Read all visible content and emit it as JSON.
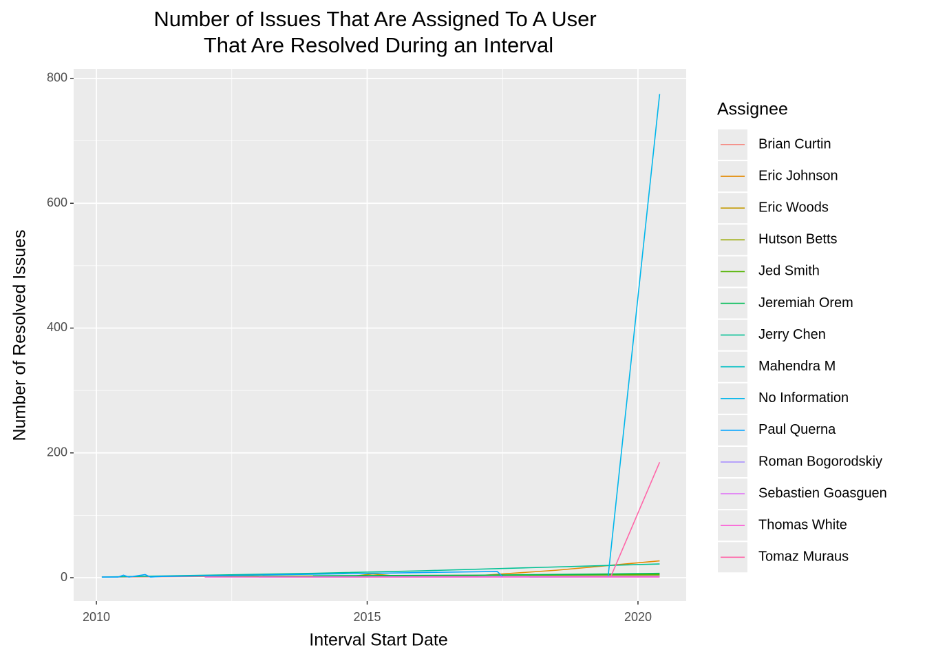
{
  "chart_data": {
    "type": "line",
    "title": [
      "Number of Issues That Are Assigned To A User",
      "That Are Resolved During an Interval"
    ],
    "x_label": "Interval Start Date",
    "y_label": "Number of Resolved Issues",
    "legend_title": "Assignee",
    "legend_position": "right",
    "xlim": [
      2009.58,
      2020.89
    ],
    "xticks": [
      2010,
      2015,
      2020
    ],
    "x_minor_grid": [
      2012.5,
      2017.5
    ],
    "ylim": [
      -37.5,
      815.4
    ],
    "yticks": [
      0,
      200,
      400,
      600,
      800
    ],
    "y_minor_grid": [
      100,
      300,
      500,
      700
    ],
    "grid": true,
    "series": [
      {
        "name": "Brian Curtin",
        "color": "#F8766D",
        "x": [
          2010.1,
          2012,
          2014,
          2016
        ],
        "values": [
          1,
          2,
          1,
          1
        ]
      },
      {
        "name": "Eric Johnson",
        "color": "#E38900",
        "x": [
          2014.5,
          2017,
          2018.5,
          2020.4
        ],
        "values": [
          2,
          3,
          12,
          27
        ]
      },
      {
        "name": "Eric Woods",
        "color": "#C49A00",
        "x": [
          2014.7,
          2015.1,
          2015.5,
          2016
        ],
        "values": [
          2,
          6,
          3,
          2
        ]
      },
      {
        "name": "Hutson Betts",
        "color": "#99A800",
        "x": [
          2016,
          2018,
          2020.4
        ],
        "values": [
          1,
          2,
          3
        ]
      },
      {
        "name": "Jed Smith",
        "color": "#53B400",
        "x": [
          2012,
          2015,
          2020.4
        ],
        "values": [
          2,
          3,
          5
        ]
      },
      {
        "name": "Jeremiah Orem",
        "color": "#00BC56",
        "x": [
          2014,
          2017,
          2019.5,
          2020.4
        ],
        "values": [
          3,
          4,
          6,
          7
        ]
      },
      {
        "name": "Jerry Chen",
        "color": "#00C094",
        "x": [
          2010.1,
          2012,
          2014,
          2016,
          2018,
          2020.4
        ],
        "values": [
          1,
          4,
          7,
          11,
          16,
          22
        ]
      },
      {
        "name": "Mahendra M",
        "color": "#00BFC4",
        "x": [
          2018,
          2020.4
        ],
        "values": [
          1,
          2
        ]
      },
      {
        "name": "No Information",
        "color": "#00B6EB",
        "x": [
          2019.45,
          2020.4
        ],
        "values": [
          3,
          775
        ]
      },
      {
        "name": "Paul Querna",
        "color": "#06A4FF",
        "x": [
          2010.1,
          2010.4,
          2010.5,
          2010.6,
          2010.9,
          2011,
          2011.2,
          2017.4,
          2017.5
        ],
        "values": [
          1,
          1,
          4,
          1,
          5,
          1,
          2,
          10,
          2
        ]
      },
      {
        "name": "Roman Bogorodskiy",
        "color": "#A58AFF",
        "x": [
          2013,
          2020.4
        ],
        "values": [
          1,
          2
        ]
      },
      {
        "name": "Sebastien Goasguen",
        "color": "#DF70F8",
        "x": [
          2016,
          2020.4
        ],
        "values": [
          1,
          2
        ]
      },
      {
        "name": "Thomas White",
        "color": "#FB61D7",
        "x": [
          2012,
          2020.4
        ],
        "values": [
          1,
          1
        ]
      },
      {
        "name": "Tomaz Muraus",
        "color": "#FF66A8",
        "x": [
          2019.5,
          2020.4
        ],
        "values": [
          2,
          185
        ]
      }
    ]
  }
}
